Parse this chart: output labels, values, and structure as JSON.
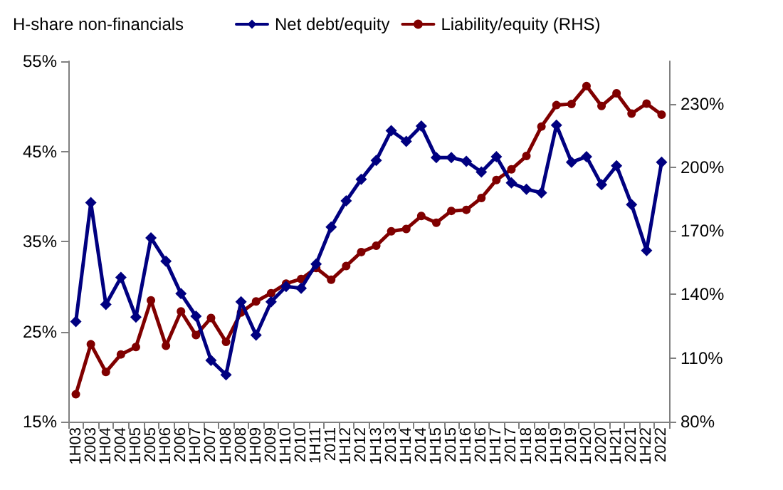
{
  "chart_data": {
    "type": "line",
    "title": "H-share non-financials",
    "categories": [
      "1H03",
      "2003",
      "1H04",
      "2004",
      "1H05",
      "2005",
      "1H06",
      "2006",
      "1H07",
      "2007",
      "1H08",
      "2008",
      "1H09",
      "2009",
      "1H10",
      "2010",
      "1H11",
      "2011",
      "1H12",
      "2012",
      "1H13",
      "2013",
      "1H14",
      "2014",
      "1H15",
      "2015",
      "1H16",
      "2016",
      "1H17",
      "2017",
      "1H18",
      "2018",
      "1H19",
      "2019",
      "1H20",
      "2020",
      "1H21",
      "2021",
      "1H22",
      "2022"
    ],
    "series": [
      {
        "name": "Net debt/equity",
        "color": "#000080",
        "marker": "diamond",
        "values": [
          26.1,
          39.3,
          28.0,
          31.0,
          26.6,
          35.4,
          32.8,
          29.2,
          26.7,
          21.8,
          20.2,
          28.3,
          24.6,
          28.3,
          30.0,
          29.8,
          32.5,
          36.6,
          39.5,
          41.9,
          44.0,
          47.3,
          46.1,
          47.8,
          44.3,
          44.3,
          43.9,
          42.7,
          44.4,
          41.5,
          40.8,
          40.4,
          47.9,
          43.8,
          44.4,
          41.3,
          43.4,
          39.1,
          34.0,
          43.8
        ]
      },
      {
        "name": "Liability/equity (RHS)",
        "color": "#800000",
        "marker": "circle",
        "axis": "y2",
        "values": [
          92.9,
          116.5,
          103.4,
          111.7,
          115.2,
          137.2,
          115.8,
          132.0,
          120.8,
          128.9,
          117.6,
          131.5,
          136.7,
          140.6,
          145.1,
          147.3,
          152.5,
          146.9,
          153.4,
          160,
          163.0,
          169.8,
          170.9,
          177.0,
          173.8,
          179.4,
          179.9,
          185.5,
          194.0,
          199.0,
          205.3,
          219.2,
          229.3,
          229.8,
          238.3,
          228.9,
          234.9,
          225.3,
          230,
          224.8
        ]
      }
    ],
    "ylim": [
      15,
      55
    ],
    "yticks": [
      {
        "value": 15,
        "label": "15%"
      },
      {
        "value": 25,
        "label": "25%"
      },
      {
        "value": 35,
        "label": "35%"
      },
      {
        "value": 45,
        "label": "45%"
      },
      {
        "value": 55,
        "label": "55%"
      }
    ],
    "y2lim": [
      80,
      250
    ],
    "y2ticks": [
      {
        "value": 80,
        "label": "80%"
      },
      {
        "value": 110,
        "label": "110%"
      },
      {
        "value": 140,
        "label": "140%"
      },
      {
        "value": 170,
        "label": "170%"
      },
      {
        "value": 200,
        "label": "200%"
      },
      {
        "value": 230,
        "label": "230%"
      }
    ],
    "grid": false,
    "legend": "top",
    "line_style": "solid"
  }
}
